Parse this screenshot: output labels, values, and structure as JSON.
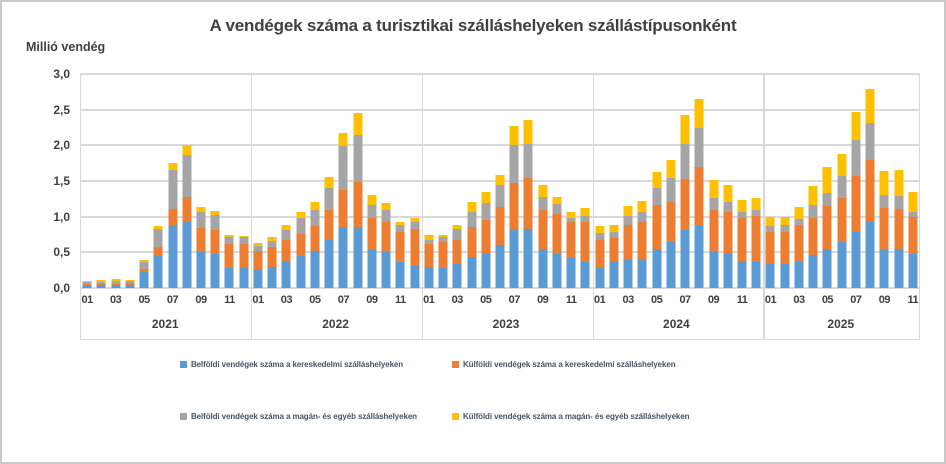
{
  "title": "A vendégek száma a turisztikai szálláshelyeken szállástípusonként",
  "y_axis_title": "Millió vendég",
  "legend": {
    "items": [
      {
        "label": "Belföldi vendégek száma a kereskedelmi szálláshelyeken",
        "color": "#5B9BD5"
      },
      {
        "label": "Külföldi vendégek száma a kereskedelmi szálláshelyeken",
        "color": "#ED7D31"
      },
      {
        "label": "Belföldi vendégek száma a magán- és egyéb szálláshelyeken",
        "color": "#A5A5A5"
      },
      {
        "label": "Külföldi vendégek száma a magán- és egyéb szálláshelyeken",
        "color": "#FFC000"
      }
    ]
  },
  "style_colors": {
    "axis_text": "#404040",
    "title_text": "#404040",
    "legend_text": "#44546A",
    "gridline": "#D9D9D9"
  },
  "chart_data": {
    "type": "bar",
    "stacked": true,
    "title": "A vendégek száma a turisztikai szálláshelyeken szállástípusonként",
    "xlabel": "",
    "ylabel": "Millió vendég",
    "ylim": [
      0,
      3.0
    ],
    "ytick_step": 0.5,
    "yticks": [
      0.0,
      0.5,
      1.0,
      1.5,
      2.0,
      2.5,
      3.0
    ],
    "ytick_labels": [
      "0,0",
      "0,5",
      "1,0",
      "1,5",
      "2,0",
      "2,5",
      "3,0"
    ],
    "grid": true,
    "legend_position": "bottom",
    "shown_month_ticks": [
      "01",
      "03",
      "05",
      "07",
      "09",
      "11"
    ],
    "groups": [
      {
        "year": "2021",
        "months": [
          "01",
          "02",
          "03",
          "04",
          "05",
          "06",
          "07",
          "08",
          "09",
          "10",
          "11",
          "12"
        ]
      },
      {
        "year": "2022",
        "months": [
          "01",
          "02",
          "03",
          "04",
          "05",
          "06",
          "07",
          "08",
          "09",
          "10",
          "11",
          "12"
        ]
      },
      {
        "year": "2023",
        "months": [
          "01",
          "02",
          "03",
          "04",
          "05",
          "06",
          "07",
          "08",
          "09",
          "10",
          "11",
          "12"
        ]
      },
      {
        "year": "2024",
        "months": [
          "01",
          "02",
          "03",
          "04",
          "05",
          "06",
          "07",
          "08",
          "09",
          "10",
          "11",
          "12"
        ]
      },
      {
        "year": "2025",
        "months": [
          "01",
          "02",
          "03",
          "04",
          "05",
          "06",
          "07",
          "08",
          "09",
          "10",
          "11"
        ]
      }
    ],
    "unit": "millió vendég",
    "series": [
      {
        "name": "Belföldi vendégek száma a kereskedelmi szálláshelyeken",
        "color": "#5B9BD5",
        "values": [
          0.04,
          0.04,
          0.04,
          0.04,
          0.22,
          0.45,
          0.88,
          0.93,
          0.51,
          0.48,
          0.28,
          0.28,
          0.25,
          0.29,
          0.37,
          0.45,
          0.52,
          0.67,
          0.85,
          0.86,
          0.53,
          0.5,
          0.36,
          0.31,
          0.29,
          0.28,
          0.33,
          0.43,
          0.48,
          0.61,
          0.82,
          0.83,
          0.55,
          0.47,
          0.42,
          0.37,
          0.28,
          0.36,
          0.39,
          0.4,
          0.54,
          0.64,
          0.82,
          0.89,
          0.51,
          0.48,
          0.37,
          0.36,
          0.33,
          0.34,
          0.37,
          0.46,
          0.54,
          0.65,
          0.79,
          0.92,
          0.53,
          0.55,
          0.47
        ]
      },
      {
        "name": "Külföldi vendégek száma a kereskedelmi szálláshelyeken",
        "color": "#ED7D31",
        "values": [
          0.02,
          0.02,
          0.02,
          0.03,
          0.04,
          0.12,
          0.23,
          0.35,
          0.33,
          0.33,
          0.34,
          0.34,
          0.27,
          0.29,
          0.31,
          0.31,
          0.35,
          0.43,
          0.52,
          0.62,
          0.45,
          0.43,
          0.43,
          0.52,
          0.33,
          0.36,
          0.34,
          0.42,
          0.48,
          0.52,
          0.65,
          0.71,
          0.54,
          0.57,
          0.5,
          0.55,
          0.4,
          0.34,
          0.49,
          0.52,
          0.62,
          0.57,
          0.71,
          0.81,
          0.59,
          0.58,
          0.61,
          0.65,
          0.46,
          0.44,
          0.51,
          0.52,
          0.61,
          0.61,
          0.78,
          0.87,
          0.59,
          0.56,
          0.53
        ]
      },
      {
        "name": "Belföldi vendégek száma a magán- és egyéb szálláshelyeken",
        "color": "#A5A5A5",
        "values": [
          0.03,
          0.03,
          0.04,
          0.03,
          0.11,
          0.26,
          0.55,
          0.59,
          0.23,
          0.21,
          0.09,
          0.09,
          0.07,
          0.08,
          0.13,
          0.22,
          0.22,
          0.3,
          0.62,
          0.66,
          0.19,
          0.16,
          0.09,
          0.1,
          0.06,
          0.07,
          0.16,
          0.21,
          0.23,
          0.32,
          0.53,
          0.48,
          0.18,
          0.14,
          0.06,
          0.09,
          0.09,
          0.09,
          0.13,
          0.14,
          0.24,
          0.33,
          0.49,
          0.55,
          0.16,
          0.15,
          0.09,
          0.09,
          0.08,
          0.1,
          0.09,
          0.19,
          0.18,
          0.31,
          0.51,
          0.53,
          0.19,
          0.18,
          0.07
        ]
      },
      {
        "name": "Külföldi vendégek száma a magán- és egyéb szálláshelyeken",
        "color": "#FFC000",
        "values": [
          0.01,
          0.02,
          0.02,
          0.01,
          0.02,
          0.04,
          0.09,
          0.13,
          0.07,
          0.06,
          0.03,
          0.02,
          0.04,
          0.06,
          0.07,
          0.09,
          0.11,
          0.16,
          0.19,
          0.31,
          0.13,
          0.1,
          0.05,
          0.05,
          0.06,
          0.04,
          0.06,
          0.15,
          0.16,
          0.14,
          0.27,
          0.33,
          0.18,
          0.1,
          0.08,
          0.11,
          0.1,
          0.1,
          0.14,
          0.16,
          0.23,
          0.26,
          0.4,
          0.4,
          0.25,
          0.24,
          0.17,
          0.16,
          0.13,
          0.12,
          0.16,
          0.26,
          0.36,
          0.31,
          0.39,
          0.47,
          0.33,
          0.37,
          0.27
        ]
      }
    ]
  }
}
